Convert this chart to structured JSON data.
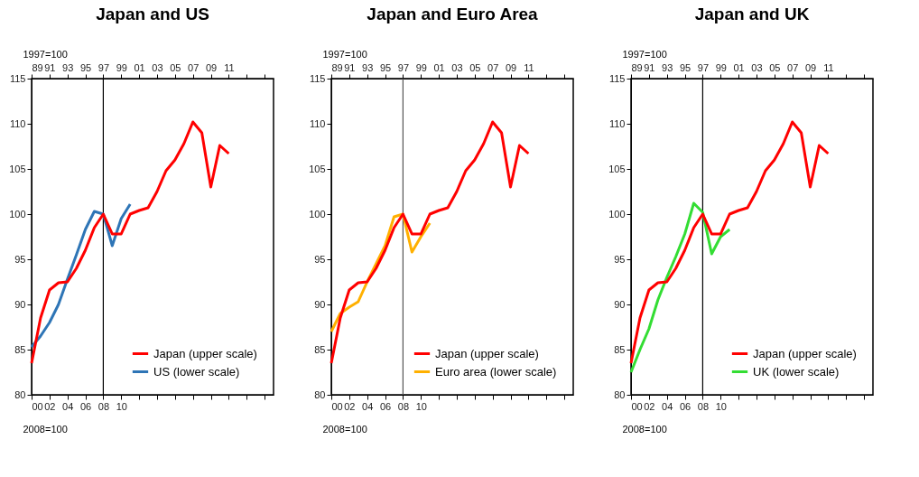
{
  "chart_data": [
    {
      "type": "line",
      "title": "Japan and US",
      "xlabel": "2008=100",
      "x2label": "1997=100",
      "grid": false,
      "legend": "bottom right",
      "xlim": [
        2000,
        2027
      ],
      "xticks": [
        {
          "value": 2000,
          "label": "00"
        },
        {
          "value": 2002,
          "label": "02"
        },
        {
          "value": 2004,
          "label": "04"
        },
        {
          "value": 2006,
          "label": "06"
        },
        {
          "value": 2008,
          "label": "08"
        },
        {
          "value": 2010,
          "label": "10"
        },
        {
          "value": 2012,
          "label": null
        },
        {
          "value": 2014,
          "label": null
        },
        {
          "value": 2016,
          "label": null
        },
        {
          "value": 2018,
          "label": null
        },
        {
          "value": 2020,
          "label": null
        },
        {
          "value": 2022,
          "label": null
        },
        {
          "value": 2024,
          "label": null
        },
        {
          "value": 2026,
          "label": null
        }
      ],
      "x2lim": [
        1989,
        2016
      ],
      "x2ticks": [
        {
          "value": 1989,
          "label": "89"
        },
        {
          "value": 1991,
          "label": "91"
        },
        {
          "value": 1993,
          "label": "93"
        },
        {
          "value": 1995,
          "label": "95"
        },
        {
          "value": 1997,
          "label": "97"
        },
        {
          "value": 1999,
          "label": "99"
        },
        {
          "value": 2001,
          "label": "01"
        },
        {
          "value": 2003,
          "label": "03"
        },
        {
          "value": 2005,
          "label": "05"
        },
        {
          "value": 2007,
          "label": "07"
        },
        {
          "value": 2009,
          "label": "09"
        },
        {
          "value": 2011,
          "label": "11"
        },
        {
          "value": 2013,
          "label": null
        },
        {
          "value": 2015,
          "label": null
        }
      ],
      "ylim": [
        80,
        115
      ],
      "yticks": [
        80,
        85,
        90,
        95,
        100,
        105,
        110,
        115
      ],
      "ref_lines": [
        {
          "axis": "x",
          "value": 2008,
          "color": "#000000"
        }
      ],
      "series": [
        {
          "name": "Japan (upper scale)",
          "color": "#ff0000",
          "axis": "x2",
          "x": [
            1989,
            1990,
            1991,
            1992,
            1993,
            1994,
            1995,
            1996,
            1997,
            1998,
            1999,
            2000,
            2001,
            2002,
            2003,
            2004,
            2005,
            2006,
            2007,
            2008,
            2009,
            2010,
            2011
          ],
          "values": [
            83.5,
            88.5,
            91.6,
            92.4,
            92.5,
            94,
            96,
            98.5,
            100,
            97.8,
            97.8,
            100,
            100.4,
            100.7,
            102.5,
            104.8,
            106,
            107.8,
            110.2,
            109,
            103,
            107.6,
            106.7
          ]
        },
        {
          "name": "US (lower scale)",
          "color": "#2e75b6",
          "x": [
            2000,
            2001,
            2002,
            2003,
            2004,
            2005,
            2006,
            2007,
            2008,
            2009,
            2010,
            2011
          ],
          "values": [
            85.3,
            86.5,
            88,
            90,
            92.8,
            95.5,
            98.3,
            100.3,
            100,
            96.5,
            99.5,
            101.1
          ]
        }
      ]
    },
    {
      "type": "line",
      "title": "Japan and Euro Area",
      "xlabel": "2008=100",
      "x2label": "1997=100",
      "grid": false,
      "legend": "bottom right",
      "xlim": [
        2000,
        2027
      ],
      "xticks": [
        {
          "value": 2000,
          "label": "00"
        },
        {
          "value": 2002,
          "label": "02"
        },
        {
          "value": 2004,
          "label": "04"
        },
        {
          "value": 2006,
          "label": "06"
        },
        {
          "value": 2008,
          "label": "08"
        },
        {
          "value": 2010,
          "label": "10"
        },
        {
          "value": 2012,
          "label": null
        },
        {
          "value": 2014,
          "label": null
        },
        {
          "value": 2016,
          "label": null
        },
        {
          "value": 2018,
          "label": null
        },
        {
          "value": 2020,
          "label": null
        },
        {
          "value": 2022,
          "label": null
        },
        {
          "value": 2024,
          "label": null
        },
        {
          "value": 2026,
          "label": null
        }
      ],
      "x2lim": [
        1989,
        2016
      ],
      "x2ticks": [
        {
          "value": 1989,
          "label": "89"
        },
        {
          "value": 1991,
          "label": "91"
        },
        {
          "value": 1993,
          "label": "93"
        },
        {
          "value": 1995,
          "label": "95"
        },
        {
          "value": 1997,
          "label": "97"
        },
        {
          "value": 1999,
          "label": "99"
        },
        {
          "value": 2001,
          "label": "01"
        },
        {
          "value": 2003,
          "label": "03"
        },
        {
          "value": 2005,
          "label": "05"
        },
        {
          "value": 2007,
          "label": "07"
        },
        {
          "value": 2009,
          "label": "09"
        },
        {
          "value": 2011,
          "label": "11"
        },
        {
          "value": 2013,
          "label": null
        },
        {
          "value": 2015,
          "label": null
        }
      ],
      "ylim": [
        80,
        115
      ],
      "yticks": [
        80,
        85,
        90,
        95,
        100,
        105,
        110,
        115
      ],
      "ref_lines": [
        {
          "axis": "x",
          "value": 2008,
          "color": "#555555"
        }
      ],
      "series": [
        {
          "name": "Japan (upper scale)",
          "color": "#ff0000",
          "axis": "x2",
          "x": [
            1989,
            1990,
            1991,
            1992,
            1993,
            1994,
            1995,
            1996,
            1997,
            1998,
            1999,
            2000,
            2001,
            2002,
            2003,
            2004,
            2005,
            2006,
            2007,
            2008,
            2009,
            2010,
            2011
          ],
          "values": [
            83.5,
            88.5,
            91.6,
            92.4,
            92.5,
            94,
            96,
            98.5,
            100,
            97.8,
            97.8,
            100,
            100.4,
            100.7,
            102.5,
            104.8,
            106,
            107.8,
            110.2,
            109,
            103,
            107.6,
            106.7
          ]
        },
        {
          "name": "Euro area (lower scale)",
          "color": "#ffb000",
          "x": [
            2000,
            2001,
            2002,
            2003,
            2004,
            2005,
            2006,
            2007,
            2008,
            2009,
            2010,
            2011
          ],
          "values": [
            87,
            89,
            89.7,
            90.3,
            92.5,
            94.5,
            96.5,
            99.7,
            100,
            95.8,
            97.5,
            99
          ]
        }
      ]
    },
    {
      "type": "line",
      "title": "Japan and UK",
      "xlabel": "2008=100",
      "x2label": "1997=100",
      "grid": false,
      "legend": "bottom right",
      "xlim": [
        2000,
        2027
      ],
      "xticks": [
        {
          "value": 2000,
          "label": "00"
        },
        {
          "value": 2002,
          "label": "02"
        },
        {
          "value": 2004,
          "label": "04"
        },
        {
          "value": 2006,
          "label": "06"
        },
        {
          "value": 2008,
          "label": "08"
        },
        {
          "value": 2010,
          "label": "10"
        },
        {
          "value": 2012,
          "label": null
        },
        {
          "value": 2014,
          "label": null
        },
        {
          "value": 2016,
          "label": null
        },
        {
          "value": 2018,
          "label": null
        },
        {
          "value": 2020,
          "label": null
        },
        {
          "value": 2022,
          "label": null
        },
        {
          "value": 2024,
          "label": null
        },
        {
          "value": 2026,
          "label": null
        }
      ],
      "x2lim": [
        1989,
        2016
      ],
      "x2ticks": [
        {
          "value": 1989,
          "label": "89"
        },
        {
          "value": 1991,
          "label": "91"
        },
        {
          "value": 1993,
          "label": "93"
        },
        {
          "value": 1995,
          "label": "95"
        },
        {
          "value": 1997,
          "label": "97"
        },
        {
          "value": 1999,
          "label": "99"
        },
        {
          "value": 2001,
          "label": "01"
        },
        {
          "value": 2003,
          "label": "03"
        },
        {
          "value": 2005,
          "label": "05"
        },
        {
          "value": 2007,
          "label": "07"
        },
        {
          "value": 2009,
          "label": "09"
        },
        {
          "value": 2011,
          "label": "11"
        },
        {
          "value": 2013,
          "label": null
        },
        {
          "value": 2015,
          "label": null
        }
      ],
      "ylim": [
        80,
        115
      ],
      "yticks": [
        80,
        85,
        90,
        95,
        100,
        105,
        110,
        115
      ],
      "ref_lines": [
        {
          "axis": "x",
          "value": 2008,
          "color": "#000000"
        }
      ],
      "series": [
        {
          "name": "Japan (upper scale)",
          "color": "#ff0000",
          "axis": "x2",
          "x": [
            1989,
            1990,
            1991,
            1992,
            1993,
            1994,
            1995,
            1996,
            1997,
            1998,
            1999,
            2000,
            2001,
            2002,
            2003,
            2004,
            2005,
            2006,
            2007,
            2008,
            2009,
            2010,
            2011
          ],
          "values": [
            83.5,
            88.5,
            91.6,
            92.4,
            92.5,
            94,
            96,
            98.5,
            100,
            97.8,
            97.8,
            100,
            100.4,
            100.7,
            102.5,
            104.8,
            106,
            107.8,
            110.2,
            109,
            103,
            107.6,
            106.7
          ]
        },
        {
          "name": "UK (lower scale)",
          "color": "#33dd33",
          "x": [
            2000,
            2001,
            2002,
            2003,
            2004,
            2005,
            2006,
            2007,
            2008,
            2009,
            2010,
            2011
          ],
          "values": [
            82.5,
            85,
            87.3,
            90.5,
            93,
            95.3,
            97.8,
            101.2,
            100.2,
            95.6,
            97.5,
            98.3
          ]
        }
      ]
    }
  ]
}
